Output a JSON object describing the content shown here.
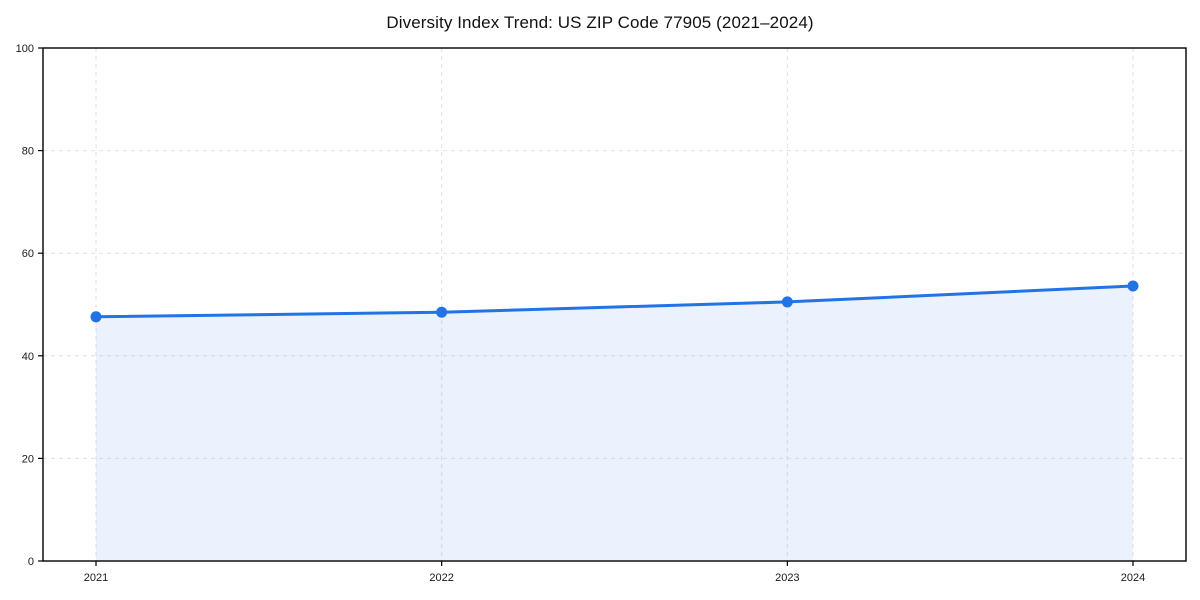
{
  "chart_data": {
    "type": "area",
    "title": "Diversity Index Trend: US ZIP Code 77905 (2021–2024)",
    "xlabel": "",
    "ylabel": "",
    "x": [
      2021,
      2022,
      2023,
      2024
    ],
    "xticklabels": [
      "2021",
      "2022",
      "2023",
      "2024"
    ],
    "yticks": [
      0,
      20,
      40,
      60,
      80,
      100
    ],
    "ylim": [
      0,
      100
    ],
    "grid": "dashed both axes",
    "legend": "none",
    "series": [
      {
        "name": "Diversity Index",
        "values": [
          47.6,
          48.5,
          50.5,
          53.6
        ],
        "marker": "circle"
      }
    ],
    "colors": {
      "line": "#2273e6",
      "marker": "#2273e6",
      "area_fill": "#2273e6",
      "area_opacity": 0.09,
      "grid": "#e2e2e2",
      "spine": "#000000",
      "tick_label": "#1a1a1a",
      "background": "#ffffff"
    }
  }
}
